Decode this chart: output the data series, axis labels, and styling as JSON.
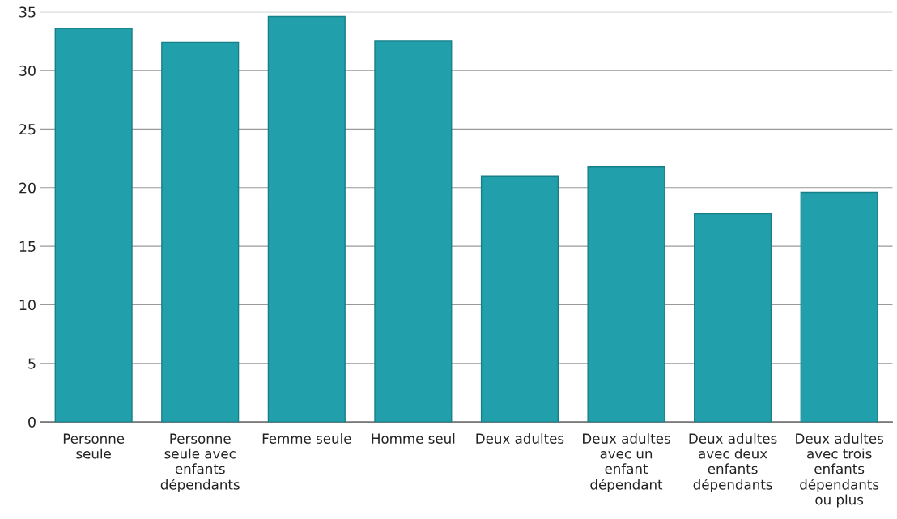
{
  "chart_data": {
    "type": "bar",
    "categories": [
      "Personne\nseule",
      "Personne\nseule avec\nenfants\ndépendants",
      "Femme seule",
      "Homme seul",
      "Deux adultes",
      "Deux adultes\navec un\nenfant\ndépendant",
      "Deux adultes\navec deux\nenfants\ndépendants",
      "Deux adultes\navec trois\nenfants\ndépendants\nou plus"
    ],
    "values": [
      33.6,
      32.4,
      34.6,
      32.5,
      21.0,
      21.8,
      17.8,
      19.6
    ],
    "color": "#21a0ab",
    "ylim": [
      0,
      35
    ],
    "yticks": [
      0,
      5,
      10,
      15,
      20,
      25,
      30,
      35
    ],
    "grid": "y",
    "legend": false
  }
}
